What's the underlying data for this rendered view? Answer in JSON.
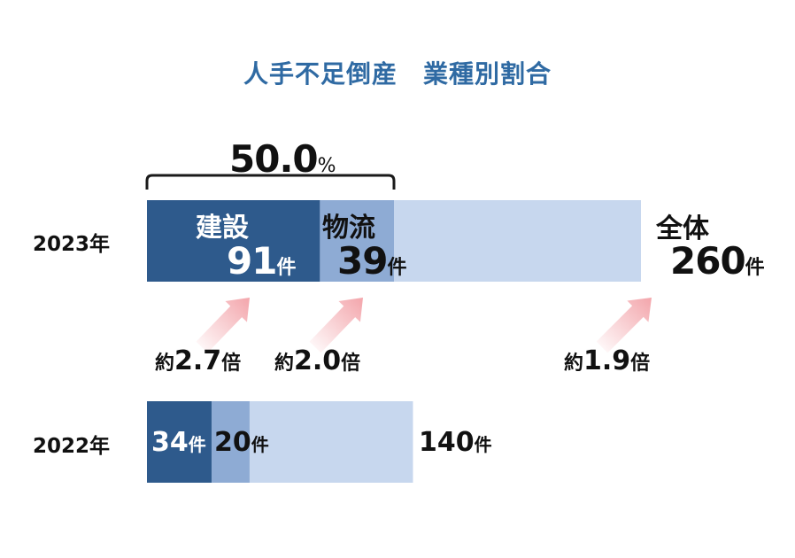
{
  "chart_data": {
    "type": "bar",
    "stacked": true,
    "orientation": "horizontal",
    "title": "人手不足倒産　業種別割合",
    "unit": "件",
    "categories": [
      "2023年",
      "2022年"
    ],
    "series": [
      {
        "name": "建設",
        "values": [
          91,
          34
        ]
      },
      {
        "name": "物流",
        "values": [
          39,
          20
        ]
      }
    ],
    "totals": {
      "label": "全体",
      "values": [
        260,
        140
      ]
    },
    "bracket": {
      "value": "50.0",
      "unit": "%"
    },
    "multipliers": [
      {
        "pre": "約",
        "value": "2.7",
        "post": "倍"
      },
      {
        "pre": "約",
        "value": "2.0",
        "post": "倍"
      },
      {
        "pre": "約",
        "value": "1.9",
        "post": "倍"
      }
    ],
    "colors": {
      "construction": "#2e5a8c",
      "logistics": "#8eabd4",
      "other": "#c7d7ee",
      "arrow": "#f3a5ab",
      "title": "#2f6aa3"
    }
  }
}
